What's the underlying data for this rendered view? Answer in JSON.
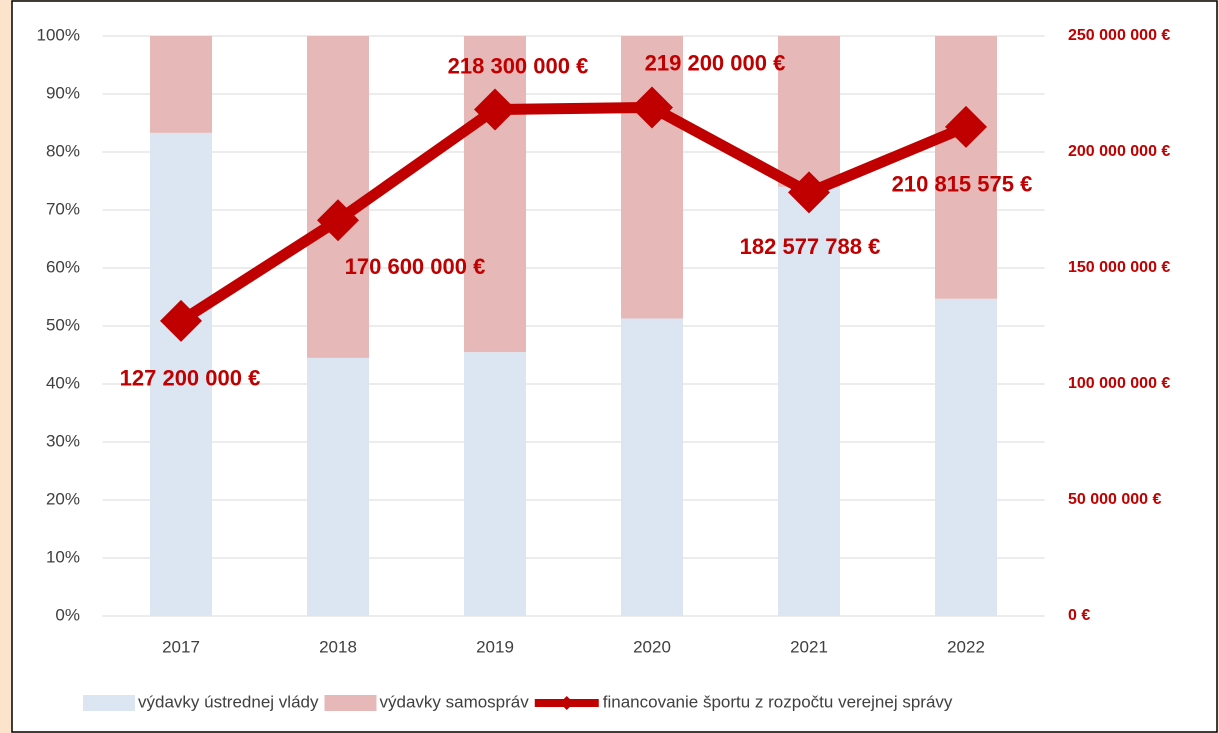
{
  "chart_data": {
    "type": "bar",
    "categories": [
      "2017",
      "2018",
      "2019",
      "2020",
      "2021",
      "2022"
    ],
    "series": [
      {
        "name": "výdavky ústrednej vlády",
        "color": "#dce6f2",
        "values": [
          83.3,
          44.5,
          45.5,
          51.3,
          74,
          54.7
        ]
      },
      {
        "name": "výdavky samospráv",
        "color": "#e6b9b8",
        "values": [
          16.7,
          55.5,
          54.5,
          48.7,
          26,
          45.3
        ]
      },
      {
        "name": "financovanie športu z rozpočtu verejnej správy",
        "color": "#c00000",
        "type": "line",
        "axis": "y2",
        "values": [
          127200000,
          170600000,
          218300000,
          219200000,
          182577788,
          210815575
        ],
        "value_labels": [
          "127 200 000 €",
          "170 600 000 €",
          "218 300 000 €",
          "219 200 000 €",
          "182 577 788 €",
          "210 815 575 €"
        ]
      }
    ],
    "ylim": [
      0,
      100
    ],
    "yticks": [
      {
        "value": 0,
        "label": "0%"
      },
      {
        "value": 10,
        "label": "10%"
      },
      {
        "value": 20,
        "label": "20%"
      },
      {
        "value": 30,
        "label": "30%"
      },
      {
        "value": 40,
        "label": "40%"
      },
      {
        "value": 50,
        "label": "50%"
      },
      {
        "value": 60,
        "label": "60%"
      },
      {
        "value": 70,
        "label": "70%"
      },
      {
        "value": 80,
        "label": "80%"
      },
      {
        "value": 90,
        "label": "90%"
      },
      {
        "value": 100,
        "label": "100%"
      }
    ],
    "y2lim": [
      0,
      250000000
    ],
    "y2ticks": [
      {
        "value": 0,
        "label": "0 €"
      },
      {
        "value": 50000000,
        "label": "50 000 000 €"
      },
      {
        "value": 100000000,
        "label": "100 000 000 €"
      },
      {
        "value": 150000000,
        "label": "150 000 000 €"
      },
      {
        "value": 200000000,
        "label": "200 000 000 €"
      },
      {
        "value": 250000000,
        "label": "250 000 000 €"
      }
    ],
    "grid": true,
    "legend": "bottom"
  }
}
